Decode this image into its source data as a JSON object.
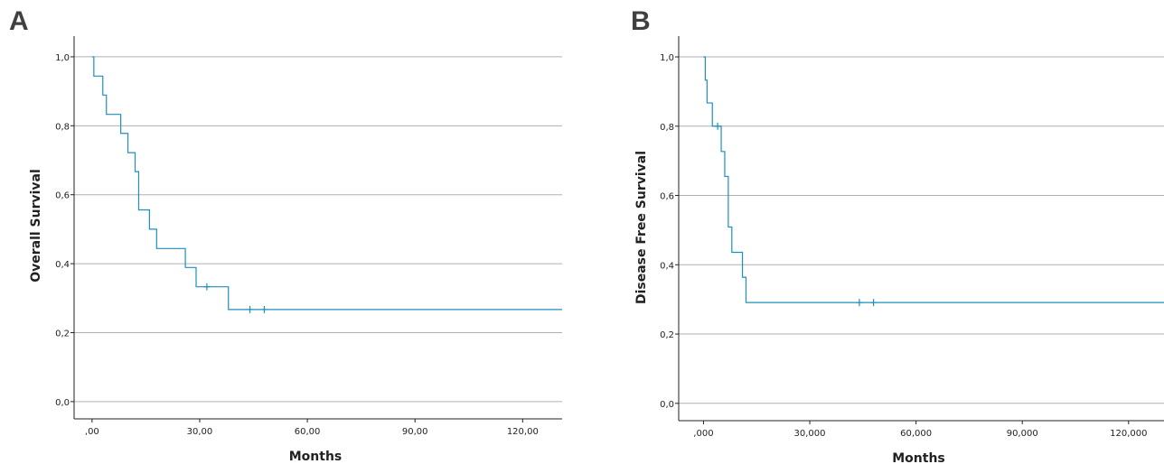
{
  "panel_labels": {
    "a": "A",
    "b": "B"
  },
  "colors": {
    "curve": "#1f8fbf",
    "grid": "#b0b0b0",
    "axis": "#222222"
  },
  "chart_data": [
    {
      "type": "line",
      "subtype": "kaplan-meier-step",
      "panel": "A",
      "xlabel": "Months",
      "ylabel": "Overall Survival",
      "xlim": [
        -5,
        131
      ],
      "ylim": [
        -0.05,
        1.06
      ],
      "x_ticks": [
        0,
        30,
        60,
        90,
        120
      ],
      "x_tick_labels": [
        ",00",
        "30,00",
        "60,00",
        "90,00",
        "120,00"
      ],
      "y_ticks": [
        0.0,
        0.2,
        0.4,
        0.6,
        0.8,
        1.0
      ],
      "y_tick_labels": [
        "0,0",
        "0,2",
        "0,4",
        "0,6",
        "0,8",
        "1,0"
      ],
      "grid": "horizontal",
      "series": [
        {
          "steps": [
            [
              0,
              1.0
            ],
            [
              0.5,
              0.944
            ],
            [
              3,
              0.889
            ],
            [
              4,
              0.833
            ],
            [
              8,
              0.778
            ],
            [
              10,
              0.722
            ],
            [
              12,
              0.667
            ],
            [
              13,
              0.556
            ],
            [
              16,
              0.5
            ],
            [
              18,
              0.444
            ],
            [
              26,
              0.389
            ],
            [
              29,
              0.333
            ],
            [
              38,
              0.267
            ],
            [
              131,
              0.267
            ]
          ],
          "censored": [
            [
              32,
              0.333
            ],
            [
              44,
              0.267
            ],
            [
              48,
              0.267
            ]
          ]
        }
      ]
    },
    {
      "type": "line",
      "subtype": "kaplan-meier-step",
      "panel": "B",
      "xlabel": "Months",
      "ylabel": "Disease Free Survival",
      "xlim": [
        -7,
        130
      ],
      "ylim": [
        -0.05,
        1.06
      ],
      "x_ticks": [
        0,
        30,
        60,
        90,
        120
      ],
      "x_tick_labels": [
        ",000",
        "30,000",
        "60,000",
        "90,000",
        "120,000"
      ],
      "y_ticks": [
        0.0,
        0.2,
        0.4,
        0.6,
        0.8,
        1.0
      ],
      "y_tick_labels": [
        "0,0",
        "0,2",
        "0,4",
        "0,6",
        "0,8",
        "1,0"
      ],
      "grid": "horizontal",
      "series": [
        {
          "steps": [
            [
              0,
              1.0
            ],
            [
              0.5,
              0.933
            ],
            [
              1,
              0.867
            ],
            [
              2.5,
              0.8
            ],
            [
              5,
              0.727
            ],
            [
              6,
              0.655
            ],
            [
              7,
              0.509
            ],
            [
              8,
              0.436
            ],
            [
              11,
              0.364
            ],
            [
              12,
              0.291
            ],
            [
              131,
              0.291
            ]
          ],
          "censored": [
            [
              4,
              0.8
            ],
            [
              44,
              0.291
            ],
            [
              48,
              0.291
            ]
          ]
        }
      ]
    }
  ]
}
